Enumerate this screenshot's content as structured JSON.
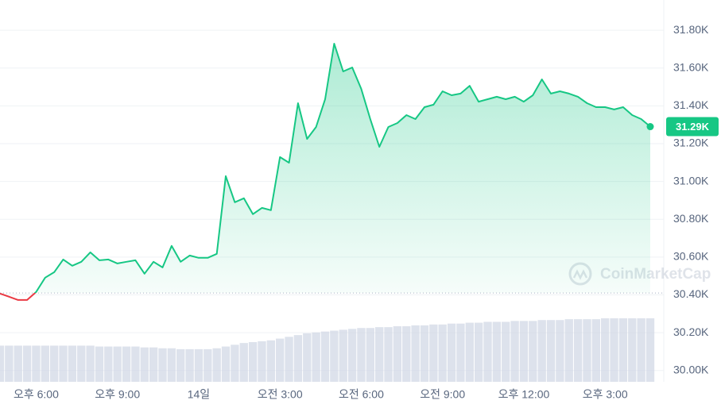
{
  "chart_data": {
    "type": "line",
    "watermark": "CoinMarketCap",
    "values": [
      30407,
      30390,
      30373,
      30373,
      30415,
      30491,
      30520,
      30587,
      30554,
      30575,
      30625,
      30583,
      30587,
      30566,
      30575,
      30583,
      30512,
      30575,
      30545,
      30659,
      30575,
      30608,
      30596,
      30596,
      30617,
      31028,
      30890,
      30911,
      30827,
      30860,
      30848,
      31129,
      31099,
      31414,
      31225,
      31288,
      31435,
      31729,
      31582,
      31603,
      31490,
      31330,
      31183,
      31288,
      31309,
      31351,
      31330,
      31393,
      31406,
      31477,
      31456,
      31465,
      31506,
      31422,
      31435,
      31448,
      31435,
      31448,
      31422,
      31456,
      31540,
      31465,
      31477,
      31465,
      31448,
      31414,
      31393,
      31393,
      31381,
      31393,
      31351,
      31330,
      31290
    ],
    "volume": [
      41,
      41,
      41,
      41,
      41,
      41,
      41,
      41,
      41,
      41,
      41,
      40,
      40,
      40,
      40,
      40,
      39,
      39,
      38,
      38,
      37,
      37,
      37,
      37,
      38,
      40,
      42,
      44,
      45,
      46,
      47,
      49,
      51,
      53,
      55,
      56,
      57,
      58,
      59,
      60,
      61,
      61,
      62,
      62,
      63,
      63,
      64,
      64,
      65,
      65,
      66,
      66,
      67,
      67,
      68,
      68,
      68,
      69,
      69,
      69,
      70,
      70,
      70,
      71,
      71,
      71,
      71,
      72,
      72,
      72,
      72,
      72,
      72
    ],
    "baseline": 30410,
    "up_color": "#16c784",
    "down_color": "#ea3943",
    "volume_color": "#cfd6e4",
    "price_label": "31.29K",
    "ylim": [
      29940,
      31960
    ],
    "yticks": [
      {
        "value": 30000,
        "label": "30.00K"
      },
      {
        "value": 30200,
        "label": "30.20K"
      },
      {
        "value": 30400,
        "label": "30.40K"
      },
      {
        "value": 30600,
        "label": "30.60K"
      },
      {
        "value": 30800,
        "label": "30.80K"
      },
      {
        "value": 31000,
        "label": "31.00K"
      },
      {
        "value": 31200,
        "label": "31.20K"
      },
      {
        "value": 31400,
        "label": "31.40K"
      },
      {
        "value": 31600,
        "label": "31.60K"
      },
      {
        "value": 31800,
        "label": "31.80K"
      }
    ],
    "xticks": [
      {
        "value": 4,
        "label": "오후 6:00"
      },
      {
        "value": 13,
        "label": "오후 9:00"
      },
      {
        "value": 22,
        "label": "14일"
      },
      {
        "value": 31,
        "label": "오전 3:00"
      },
      {
        "value": 40,
        "label": "오전 6:00"
      },
      {
        "value": 49,
        "label": "오전 9:00"
      },
      {
        "value": 58,
        "label": "오후 12:00"
      },
      {
        "value": 67,
        "label": "오후 3:00"
      }
    ],
    "grid": true
  }
}
